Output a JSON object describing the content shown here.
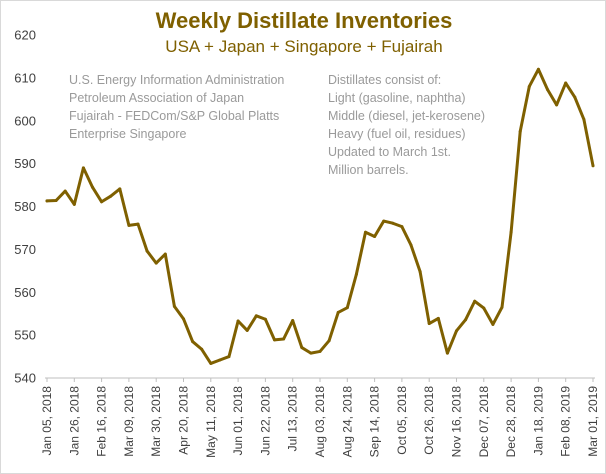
{
  "chart_data": {
    "type": "line",
    "title": "Weekly Distillate Inventories",
    "subtitle": "USA + Japan + Singapore + Fujairah",
    "xlabel": "",
    "ylabel": "",
    "ylim": [
      540,
      620
    ],
    "yticks": [
      540,
      550,
      560,
      570,
      580,
      590,
      600,
      610,
      620
    ],
    "grid": false,
    "line_color": "#7f6000",
    "xtick_labels": [
      "Jan 05, 2018",
      "Jan 26, 2018",
      "Feb 16, 2018",
      "Mar 09, 2018",
      "Mar 30, 2018",
      "Apr 20, 2018",
      "May 11, 2018",
      "Jun 01, 2018",
      "Jun 22, 2018",
      "Jul 13, 2018",
      "Aug 03, 2018",
      "Aug 24, 2018",
      "Sep 14, 2018",
      "Oct 05, 2018",
      "Oct 26, 2018",
      "Nov 16, 2018",
      "Dec 07, 2018",
      "Dec 28, 2018",
      "Jan 18, 2019",
      "Feb 08, 2019",
      "Mar 01, 2019"
    ],
    "series": [
      {
        "name": "Weekly Distillate Inventories",
        "values": [
          581.3,
          581.4,
          583.6,
          580.5,
          589.0,
          584.5,
          581.1,
          582.4,
          584.1,
          575.6,
          575.9,
          569.6,
          566.8,
          568.9,
          556.7,
          553.8,
          548.5,
          546.7,
          543.4,
          544.2,
          545.0,
          553.3,
          551.1,
          554.5,
          553.7,
          548.9,
          549.1,
          553.4,
          547.1,
          545.8,
          546.2,
          548.7,
          555.3,
          556.4,
          564.2,
          574.0,
          573.0,
          576.6,
          576.1,
          575.3,
          571.0,
          564.8,
          552.7,
          553.9,
          545.8,
          551.0,
          553.6,
          557.9,
          556.3,
          552.5,
          556.5,
          574.0,
          597.5,
          608.0,
          612.0,
          607.3,
          603.7,
          608.8,
          605.5,
          600.3,
          589.5
        ]
      }
    ],
    "annotations": {
      "sources": [
        "U.S. Energy Information Administration",
        "Petroleum Association of Japan",
        "Fujairah - FEDCom/S&P Global Platts",
        "Enterprise Singapore"
      ],
      "notes": [
        "Distillates consist of:",
        "Light (gasoline, naphtha)",
        "Middle (diesel, jet-kerosene)",
        "Heavy (fuel oil, residues)",
        "Updated to March 1st.",
        "Million barrels."
      ]
    }
  }
}
